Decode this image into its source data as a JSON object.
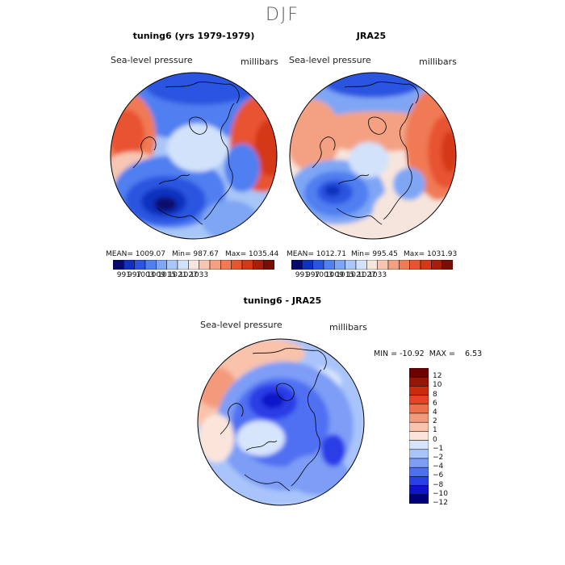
{
  "figure": {
    "title": "DJF"
  },
  "colors": {
    "abs_scale": [
      "#08086e",
      "#1030c0",
      "#2b55e0",
      "#4f7ff0",
      "#7ea6f5",
      "#a9c6f8",
      "#d2e2fb",
      "#f6e5dc",
      "#f7c6b2",
      "#f4a183",
      "#f07a55",
      "#e85330",
      "#d43815",
      "#a81e0a",
      "#7a0c04"
    ],
    "diff_scale": [
      "#00007a",
      "#1014c8",
      "#2a3ee6",
      "#4f6ff2",
      "#7d9df6",
      "#a9c4fa",
      "#d6e4fc",
      "#fbe5da",
      "#f8c2ab",
      "#f49a7c",
      "#ee6f4b",
      "#e44324",
      "#cc2a0c",
      "#9a1404",
      "#6e0000"
    ],
    "land_outline": "#000000"
  },
  "panels": [
    {
      "title": "tuning6 (yrs 1979-1979)",
      "field": "Sea-level pressure",
      "units": "millibars",
      "mean_text": "MEAN= 1009.07",
      "min_text": "Min= 987.67",
      "max_text": "Max= 1035.44",
      "pattern": "model"
    },
    {
      "title": "JRA25",
      "field": "Sea-level pressure",
      "units": "millibars",
      "mean_text": "MEAN= 1012.71",
      "min_text": "Min= 995.45",
      "max_text": "Max= 1031.93",
      "pattern": "obs"
    }
  ],
  "abs_colorbar_labels": [
    "991",
    "997",
    "1003",
    "1009",
    "1015",
    "1021",
    "1027",
    "1033"
  ],
  "diff_panel": {
    "title": "tuning6 - JRA25",
    "field": "Sea-level pressure",
    "units": "millibars",
    "minmax_text": "MIN = -10.92  MAX =    6.53",
    "colorbar_labels": [
      "12",
      "10",
      "8",
      "6",
      "4",
      "2",
      "1",
      "0",
      "−1",
      "−2",
      "−4",
      "−6",
      "−8",
      "−10",
      "−12"
    ]
  }
}
